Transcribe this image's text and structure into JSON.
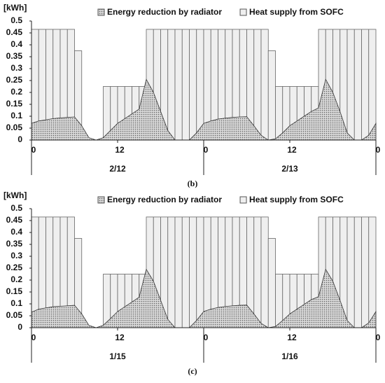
{
  "charts": [
    {
      "type": "bar",
      "unit": "[kWh]",
      "caption": "(b)",
      "xlim": [
        0,
        48
      ],
      "xticks": [
        0,
        12,
        {
          "value": 24,
          "label": "0"
        },
        {
          "value": 36,
          "label": "12"
        },
        {
          "value": 48,
          "label": "0"
        }
      ],
      "groups": [
        "2/12",
        "2/13"
      ],
      "ylim": [
        0,
        0.5
      ],
      "yticks": [
        0,
        0.05,
        0.1,
        0.15,
        0.2,
        0.25,
        0.3,
        0.35,
        0.4,
        0.45,
        0.5
      ],
      "series": [
        {
          "name": "Energy reduction by radiator",
          "type": "area",
          "color": "#999999",
          "x": [
            0,
            1,
            2,
            3,
            4,
            5,
            6,
            7,
            8,
            9,
            10,
            11,
            12,
            13,
            14,
            15,
            16,
            17,
            18,
            19,
            20,
            21,
            22,
            23,
            24,
            25,
            26,
            27,
            28,
            29,
            30,
            31,
            32,
            33,
            34,
            35,
            36,
            37,
            38,
            39,
            40,
            41,
            42,
            43,
            44,
            45,
            46,
            47,
            48
          ],
          "values": [
            0.07,
            0.08,
            0.085,
            0.09,
            0.093,
            0.095,
            0.097,
            0.06,
            0.01,
            0,
            0.01,
            0.04,
            0.07,
            0.09,
            0.11,
            0.13,
            0.255,
            0.2,
            0.12,
            0.04,
            0,
            0,
            0,
            0.03,
            0.07,
            0.08,
            0.088,
            0.092,
            0.095,
            0.097,
            0.098,
            0.06,
            0.02,
            0,
            0.005,
            0.03,
            0.06,
            0.08,
            0.1,
            0.12,
            0.135,
            0.255,
            0.2,
            0.12,
            0.03,
            0,
            0,
            0.02,
            0.07
          ]
        },
        {
          "name": "Heat supply from SOFC",
          "type": "bar",
          "color": "#efefef",
          "values": [
            0.465,
            0.465,
            0.465,
            0.465,
            0.465,
            0.465,
            0.375,
            0,
            0,
            0,
            0.225,
            0.225,
            0.225,
            0.225,
            0.225,
            0.225,
            0.465,
            0.465,
            0.465,
            0.465,
            0.465,
            0.465,
            0.465,
            0.465,
            0.465,
            0.465,
            0.465,
            0.465,
            0.465,
            0.465,
            0.465,
            0.465,
            0.465,
            0.375,
            0.225,
            0.225,
            0.225,
            0.225,
            0.225,
            0.225,
            0.465,
            0.465,
            0.465,
            0.465,
            0.465,
            0.465,
            0.465,
            0.465
          ]
        }
      ]
    },
    {
      "type": "bar",
      "unit": "[kWh]",
      "caption": "(c)",
      "xlim": [
        0,
        48
      ],
      "xticks": [
        0,
        12,
        {
          "value": 24,
          "label": "0"
        },
        {
          "value": 36,
          "label": "12"
        },
        {
          "value": 48,
          "label": "0"
        }
      ],
      "groups": [
        "1/15",
        "1/16"
      ],
      "ylim": [
        0,
        0.5
      ],
      "yticks": [
        0,
        0.05,
        0.1,
        0.15,
        0.2,
        0.25,
        0.3,
        0.35,
        0.4,
        0.45,
        0.5
      ],
      "series": [
        {
          "name": "Energy reduction by radiator",
          "type": "area",
          "color": "#999999",
          "x": [
            0,
            1,
            2,
            3,
            4,
            5,
            6,
            7,
            8,
            9,
            10,
            11,
            12,
            13,
            14,
            15,
            16,
            17,
            18,
            19,
            20,
            21,
            22,
            23,
            24,
            25,
            26,
            27,
            28,
            29,
            30,
            31,
            32,
            33,
            34,
            35,
            36,
            37,
            38,
            39,
            40,
            41,
            42,
            43,
            44,
            45,
            46,
            47,
            48
          ],
          "values": [
            0.065,
            0.078,
            0.083,
            0.088,
            0.09,
            0.092,
            0.094,
            0.058,
            0.01,
            0,
            0.01,
            0.038,
            0.068,
            0.088,
            0.108,
            0.128,
            0.245,
            0.195,
            0.115,
            0.035,
            0,
            0,
            0,
            0.03,
            0.068,
            0.078,
            0.085,
            0.089,
            0.092,
            0.094,
            0.095,
            0.058,
            0.018,
            0,
            0.005,
            0.03,
            0.058,
            0.078,
            0.098,
            0.118,
            0.13,
            0.245,
            0.195,
            0.115,
            0.03,
            0,
            0,
            0.02,
            0.068
          ]
        },
        {
          "name": "Heat supply from SOFC",
          "type": "bar",
          "color": "#efefef",
          "values": [
            0.465,
            0.465,
            0.465,
            0.465,
            0.465,
            0.465,
            0.375,
            0,
            0,
            0,
            0.225,
            0.225,
            0.225,
            0.225,
            0.225,
            0.225,
            0.465,
            0.465,
            0.465,
            0.465,
            0.465,
            0.465,
            0.465,
            0.465,
            0.465,
            0.465,
            0.465,
            0.465,
            0.465,
            0.465,
            0.465,
            0.465,
            0.465,
            0.375,
            0.225,
            0.225,
            0.225,
            0.225,
            0.225,
            0.225,
            0.465,
            0.465,
            0.465,
            0.465,
            0.465,
            0.465,
            0.465,
            0.465
          ]
        }
      ]
    }
  ]
}
